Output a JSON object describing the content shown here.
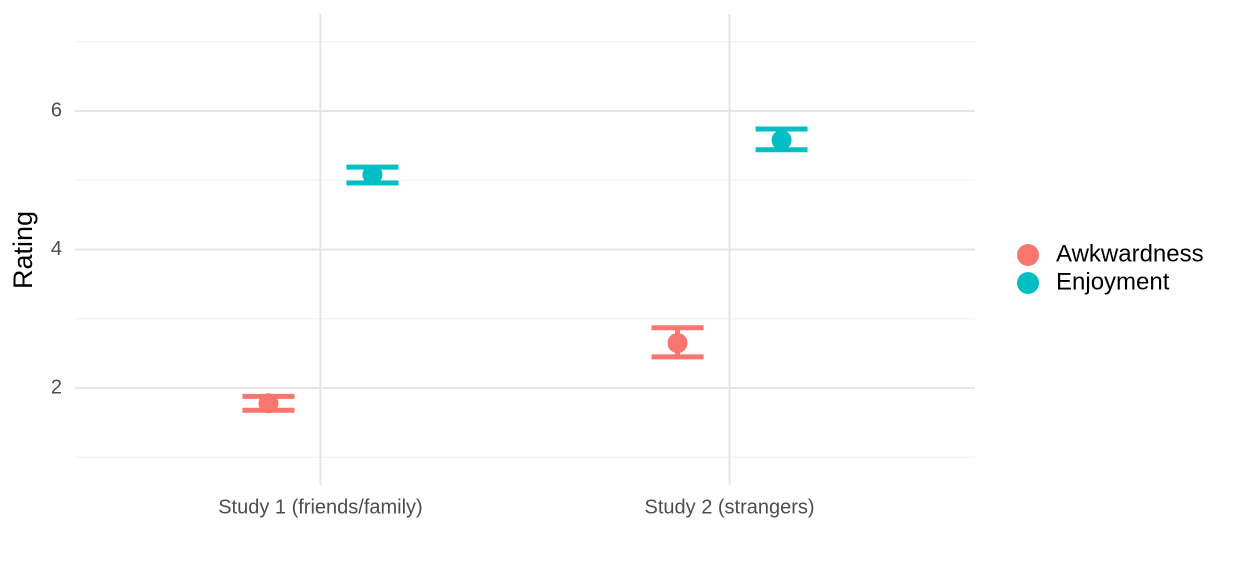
{
  "chart_data": {
    "type": "pointrange",
    "y_label": "Rating",
    "categories": [
      "Study 1 (friends/family)",
      "Study 2 (strangers)"
    ],
    "series": [
      {
        "name": "Awkwardness",
        "color": "#f8766d",
        "values": [
          1.78,
          2.65
        ],
        "lower": [
          1.68,
          2.45
        ],
        "upper": [
          1.88,
          2.87
        ]
      },
      {
        "name": "Enjoyment",
        "color": "#00bfc4",
        "values": [
          5.08,
          5.58
        ],
        "lower": [
          4.96,
          5.44
        ],
        "upper": [
          5.19,
          5.74
        ]
      }
    ],
    "ylim": [
      0.6,
      7.4
    ],
    "yticks": [
      2,
      4,
      6
    ],
    "minor_yticks": [
      1,
      3,
      5,
      7
    ],
    "grid": true,
    "legend": "right"
  }
}
